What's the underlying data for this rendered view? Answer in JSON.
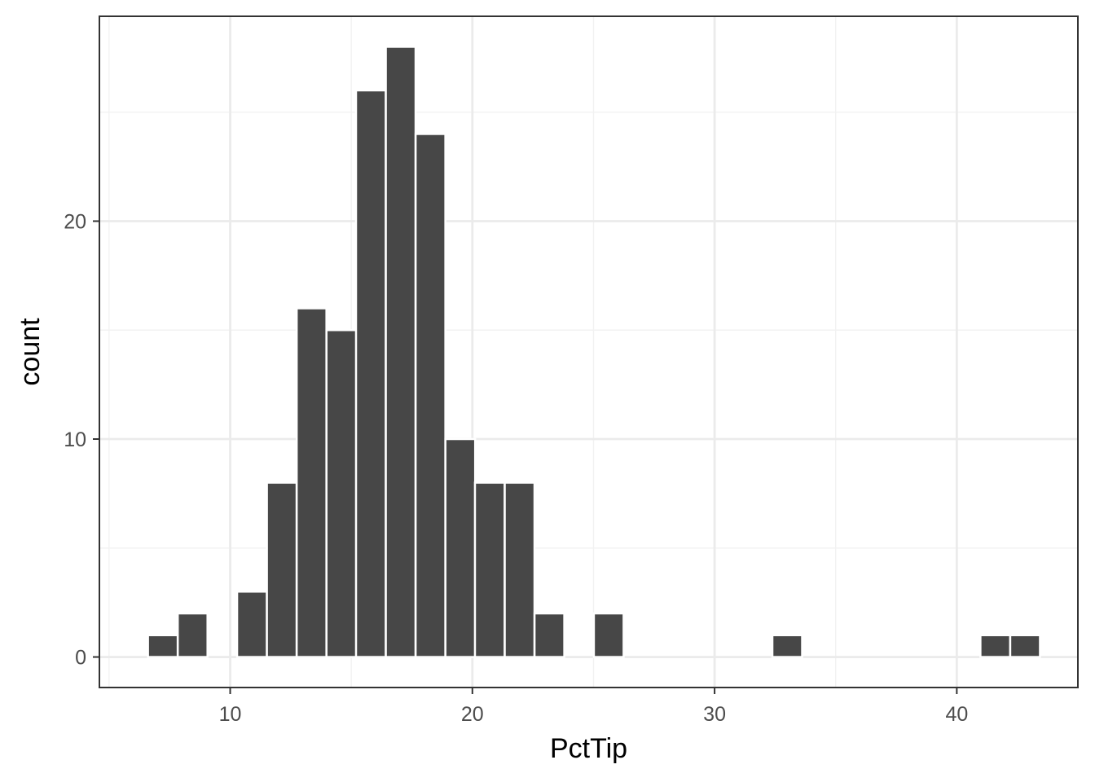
{
  "chart_data": {
    "type": "bar",
    "xlabel": "PctTip",
    "ylabel": "count",
    "bin_width": 1.2276,
    "bins": [
      {
        "x": 7.22,
        "count": 1
      },
      {
        "x": 8.45,
        "count": 2
      },
      {
        "x": 9.68,
        "count": 0
      },
      {
        "x": 10.9,
        "count": 3
      },
      {
        "x": 12.13,
        "count": 8
      },
      {
        "x": 13.36,
        "count": 16
      },
      {
        "x": 14.59,
        "count": 15
      },
      {
        "x": 15.81,
        "count": 26
      },
      {
        "x": 17.04,
        "count": 28
      },
      {
        "x": 18.27,
        "count": 24
      },
      {
        "x": 19.5,
        "count": 10
      },
      {
        "x": 20.72,
        "count": 8
      },
      {
        "x": 21.95,
        "count": 8
      },
      {
        "x": 23.18,
        "count": 2
      },
      {
        "x": 24.41,
        "count": 0
      },
      {
        "x": 25.63,
        "count": 2
      },
      {
        "x": 26.86,
        "count": 0
      },
      {
        "x": 28.09,
        "count": 0
      },
      {
        "x": 29.32,
        "count": 0
      },
      {
        "x": 30.54,
        "count": 0
      },
      {
        "x": 31.77,
        "count": 0
      },
      {
        "x": 33.0,
        "count": 1
      },
      {
        "x": 34.23,
        "count": 0
      },
      {
        "x": 35.45,
        "count": 0
      },
      {
        "x": 36.68,
        "count": 0
      },
      {
        "x": 37.91,
        "count": 0
      },
      {
        "x": 39.13,
        "count": 0
      },
      {
        "x": 40.36,
        "count": 0
      },
      {
        "x": 41.59,
        "count": 1
      },
      {
        "x": 42.82,
        "count": 1
      }
    ],
    "x_ticks": [
      10,
      20,
      30,
      40
    ],
    "x_minor_ticks": [
      5,
      15,
      25,
      35
    ],
    "y_ticks": [
      0,
      10,
      20
    ],
    "y_minor_ticks": [
      5,
      15,
      25
    ],
    "xlim": [
      4.6,
      45.0
    ],
    "ylim": [
      -1.4,
      29.4
    ],
    "grid": true,
    "colors": {
      "bar_fill": "#474747",
      "bar_outline": "#ffffff",
      "grid_major": "#ebebeb",
      "grid_minor": "#f2f2f2",
      "panel_border": "#333333",
      "tick_text": "#4d4d4d",
      "axis_title": "#000000"
    }
  }
}
